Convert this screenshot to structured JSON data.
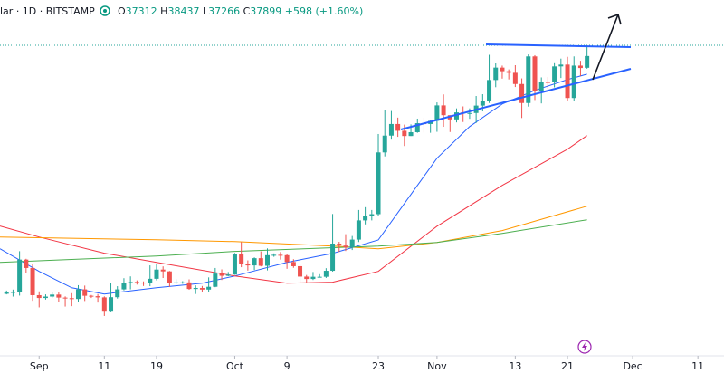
{
  "header": {
    "symbol": "lar · 1D · BITSTAMP",
    "ohlc_labels": [
      "O",
      "H",
      "L",
      "C"
    ],
    "change": "+598",
    "change_pct": "(+1.60%)"
  },
  "chart_data": {
    "type": "candlestick",
    "x": [
      "08-27",
      "08-28",
      "08-29",
      "08-30",
      "08-31",
      "09-01",
      "09-02",
      "09-03",
      "09-04",
      "09-05",
      "09-06",
      "09-07",
      "09-08",
      "09-09",
      "09-10",
      "09-11",
      "09-12",
      "09-13",
      "09-14",
      "09-15",
      "09-16",
      "09-17",
      "09-18",
      "09-19",
      "09-20",
      "09-21",
      "09-22",
      "09-23",
      "09-24",
      "09-25",
      "09-26",
      "09-27",
      "09-28",
      "09-29",
      "09-30",
      "10-01",
      "10-02",
      "10-03",
      "10-04",
      "10-05",
      "10-06",
      "10-07",
      "10-08",
      "10-09",
      "10-10",
      "10-11",
      "10-12",
      "10-13",
      "10-14",
      "10-15",
      "10-16",
      "10-17",
      "10-18",
      "10-19",
      "10-20",
      "10-21",
      "10-22",
      "10-23",
      "10-24",
      "10-25",
      "10-26",
      "10-27",
      "10-28",
      "10-29",
      "10-30",
      "10-31",
      "11-01",
      "11-02",
      "11-03",
      "11-04",
      "11-05",
      "11-06",
      "11-07",
      "11-08",
      "11-09",
      "11-10",
      "11-11",
      "11-12",
      "11-13",
      "11-14",
      "11-15",
      "11-16",
      "11-17",
      "11-18",
      "11-19",
      "11-20",
      "11-21",
      "11-22",
      "11-23",
      "11-24"
    ],
    "open": [
      26010,
      26090,
      26100,
      27720,
      27300,
      25940,
      25800,
      25870,
      25970,
      25820,
      25790,
      25750,
      26230,
      25910,
      25890,
      25830,
      25160,
      25840,
      26230,
      26530,
      26600,
      26570,
      26530,
      26760,
      27220,
      27130,
      26570,
      26580,
      26580,
      26250,
      26300,
      26220,
      26360,
      27020,
      26910,
      26970,
      27990,
      27500,
      27430,
      27790,
      27410,
      27940,
      27960,
      27940,
      27600,
      27390,
      26870,
      26750,
      26860,
      26860,
      27160,
      28520,
      28420,
      28330,
      28720,
      29680,
      29920,
      29990,
      33080,
      33920,
      34500,
      34160,
      33900,
      34090,
      34540,
      34500,
      34660,
      35430,
      34940,
      34730,
      35080,
      35040,
      35050,
      35420,
      35640,
      36700,
      37320,
      37140,
      37060,
      36500,
      35550,
      37880,
      36170,
      36600,
      36580,
      37380,
      37470,
      35800,
      37420,
      37312
    ],
    "high": [
      26170,
      26220,
      28140,
      27760,
      27490,
      26130,
      25980,
      26120,
      26100,
      25880,
      26040,
      26440,
      26420,
      25950,
      26000,
      25880,
      26540,
      26390,
      26790,
      26880,
      26680,
      26630,
      27430,
      27480,
      27380,
      27150,
      26740,
      26640,
      26730,
      26430,
      26400,
      26830,
      27300,
      27230,
      27100,
      28050,
      28600,
      27680,
      27830,
      28130,
      28280,
      28030,
      28100,
      27990,
      27740,
      27480,
      26950,
      27100,
      26990,
      27290,
      30000,
      28610,
      28990,
      28900,
      30200,
      30340,
      30200,
      34000,
      35200,
      35150,
      34820,
      34470,
      34480,
      34770,
      34820,
      34720,
      35580,
      35980,
      34940,
      35280,
      35380,
      35280,
      35900,
      35990,
      37960,
      37530,
      37420,
      37230,
      37440,
      36780,
      37980,
      37940,
      36830,
      36850,
      37540,
      37770,
      37860,
      37880,
      37660,
      38437
    ],
    "low": [
      25980,
      25870,
      25920,
      27030,
      25660,
      25330,
      25720,
      25810,
      25600,
      25370,
      25390,
      25620,
      25650,
      25800,
      25570,
      24900,
      25130,
      25770,
      26180,
      26230,
      26470,
      26400,
      26390,
      26680,
      26800,
      26360,
      26490,
      26510,
      26210,
      26000,
      26110,
      26100,
      26340,
      26700,
      26890,
      26960,
      27340,
      27170,
      27200,
      27380,
      27180,
      27860,
      27720,
      27260,
      27310,
      26560,
      26540,
      26700,
      26820,
      26800,
      27120,
      28100,
      28150,
      28200,
      28600,
      29480,
      29680,
      29880,
      32880,
      33720,
      33860,
      33400,
      33900,
      34060,
      34070,
      34060,
      34110,
      34360,
      34100,
      34580,
      34600,
      34760,
      34550,
      35130,
      35550,
      36340,
      36770,
      36730,
      36350,
      34800,
      35370,
      35700,
      35530,
      36250,
      36330,
      36800,
      35670,
      35660,
      36900,
      37266
    ],
    "close": [
      26090,
      26100,
      27720,
      27300,
      25940,
      25800,
      25870,
      25970,
      25820,
      25790,
      25750,
      26230,
      25910,
      25890,
      25830,
      25160,
      25840,
      26230,
      26530,
      26600,
      26570,
      26530,
      26760,
      27220,
      27130,
      26570,
      26580,
      26580,
      26250,
      26300,
      26220,
      26360,
      27020,
      26910,
      26970,
      27990,
      27500,
      27430,
      27790,
      27410,
      27940,
      27960,
      27940,
      27600,
      27390,
      26870,
      26750,
      26860,
      26860,
      27160,
      28520,
      28420,
      28330,
      28720,
      29680,
      29920,
      29990,
      33080,
      33920,
      34500,
      34160,
      33900,
      34090,
      34540,
      34500,
      34660,
      35430,
      34940,
      34730,
      35080,
      35040,
      35050,
      35420,
      35640,
      36700,
      37320,
      37140,
      37060,
      36500,
      35550,
      37880,
      36170,
      36600,
      36580,
      37380,
      37470,
      35800,
      37420,
      37300,
      37899
    ],
    "up_color": "#26a69a",
    "down_color": "#ef5350",
    "overlays": [
      {
        "type": "line",
        "color": "#2962ff",
        "x": [
          "08-26",
          "09-01",
          "09-06",
          "09-11",
          "09-19",
          "09-26",
          "10-01",
          "10-09",
          "10-16",
          "10-23",
          "10-28",
          "11-01",
          "11-06",
          "11-11",
          "11-16",
          "11-21",
          "11-24"
        ],
        "values": [
          28260,
          27130,
          26310,
          26000,
          26310,
          26540,
          26900,
          27580,
          28030,
          28700,
          30980,
          32790,
          34370,
          35500,
          36180,
          36720,
          36990
        ]
      },
      {
        "type": "line",
        "color": "#f23645",
        "x": [
          "08-26",
          "09-01",
          "09-11",
          "09-19",
          "10-01",
          "10-09",
          "10-16",
          "10-23",
          "11-01",
          "11-11",
          "11-21",
          "11-24"
        ],
        "values": [
          29400,
          28850,
          28040,
          27580,
          26900,
          26540,
          26590,
          27130,
          29390,
          31430,
          33240,
          33920
        ]
      },
      {
        "type": "line",
        "color": "#ff9800",
        "x": [
          "08-26",
          "09-19",
          "10-01",
          "10-16",
          "10-23",
          "11-01",
          "11-11",
          "11-24"
        ],
        "values": [
          28850,
          28710,
          28620,
          28400,
          28260,
          28580,
          29170,
          30390
        ]
      },
      {
        "type": "line",
        "color": "#4caf50",
        "x": [
          "08-26",
          "09-19",
          "10-01",
          "10-23",
          "11-01",
          "11-11",
          "11-24"
        ],
        "values": [
          27580,
          27900,
          28130,
          28400,
          28580,
          29030,
          29710
        ]
      }
    ],
    "hline": {
      "value": 38437,
      "color": "#26a69a"
    },
    "xlim": [
      "08-26",
      "12-15"
    ],
    "ylim": [
      22000,
      40700
    ],
    "xticks": [
      {
        "value": "09-01",
        "label": "Sep"
      },
      {
        "value": "09-11",
        "label": "11"
      },
      {
        "value": "09-19",
        "label": "19"
      },
      {
        "value": "10-01",
        "label": "Oct"
      },
      {
        "value": "10-09",
        "label": "9"
      },
      {
        "value": "10-23",
        "label": "23"
      },
      {
        "value": "11-01",
        "label": "Nov"
      },
      {
        "value": "11-13",
        "label": "13"
      },
      {
        "value": "11-21",
        "label": "21"
      },
      {
        "value": "12-01",
        "label": "Dec"
      },
      {
        "value": "12-11",
        "label": "11"
      }
    ]
  }
}
